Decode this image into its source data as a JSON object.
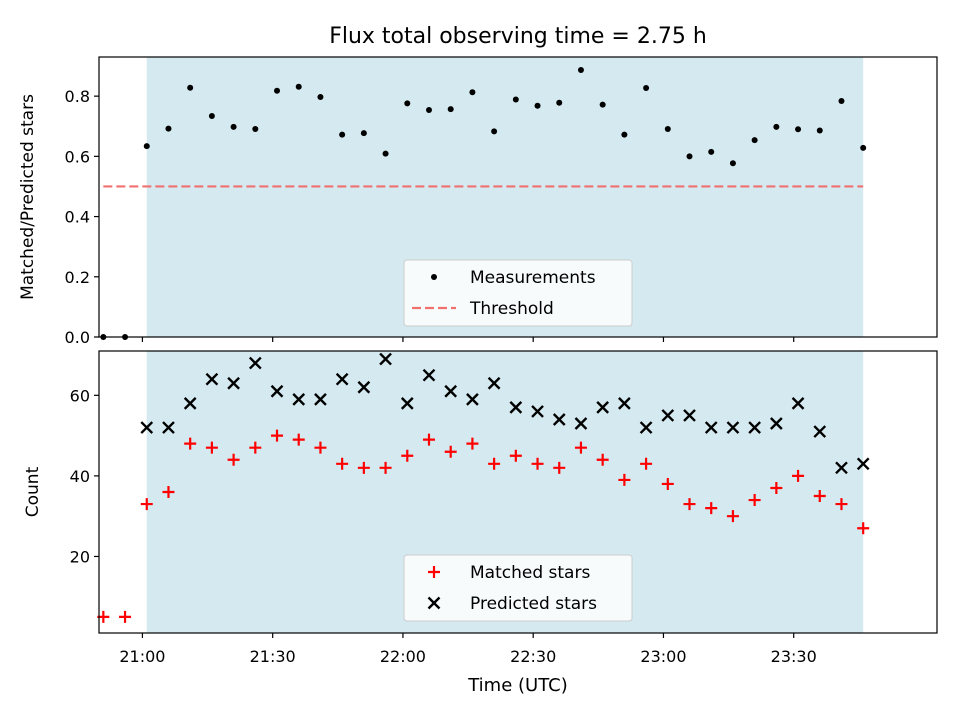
{
  "figure": {
    "title": "Flux total observing time = 2.75 h",
    "xlabel": "Time (UTC)",
    "x_ticks": [
      "21:00",
      "21:30",
      "22:00",
      "22:30",
      "23:00",
      "23:30"
    ],
    "shade_color": "#d4eaf0"
  },
  "chart_data": [
    {
      "type": "scatter",
      "name": "ratio",
      "xlim": [
        "20:50",
        "24:03"
      ],
      "shaded_interval": [
        "21:01",
        "23:46"
      ],
      "ylabel": "Matched/Predicted stars",
      "ylim": [
        0,
        0.93
      ],
      "y_ticks": [
        "0.0",
        "0.2",
        "0.4",
        "0.6",
        "0.8"
      ],
      "y_tick_values": [
        0,
        0.2,
        0.4,
        0.6,
        0.8
      ],
      "x": [
        "20:51",
        "20:56",
        "21:01",
        "21:06",
        "21:11",
        "21:16",
        "21:21",
        "21:26",
        "21:31",
        "21:36",
        "21:41",
        "21:46",
        "21:51",
        "21:56",
        "22:01",
        "22:06",
        "22:11",
        "22:16",
        "22:21",
        "22:26",
        "22:31",
        "22:36",
        "22:41",
        "22:46",
        "22:51",
        "22:56",
        "23:01",
        "23:06",
        "23:11",
        "23:16",
        "23:21",
        "23:26",
        "23:31",
        "23:36",
        "23:41",
        "23:46"
      ],
      "series": [
        {
          "name": "Measurements",
          "color": "#000000",
          "marker": "dot",
          "values": [
            0.0,
            0.0,
            0.634,
            0.692,
            0.828,
            0.734,
            0.698,
            0.691,
            0.818,
            0.831,
            0.797,
            0.672,
            0.677,
            0.609,
            0.776,
            0.754,
            0.757,
            0.813,
            0.683,
            0.789,
            0.768,
            0.778,
            0.887,
            0.772,
            0.672,
            0.827,
            0.691,
            0.6,
            0.615,
            0.577,
            0.654,
            0.698,
            0.69,
            0.686,
            0.784,
            0.628
          ]
        }
      ],
      "threshold": {
        "name": "Threshold",
        "value": 0.5,
        "color": "#f07070",
        "x_range": [
          "20:51",
          "23:46"
        ]
      },
      "legend": {
        "location": "lower center",
        "entries": [
          "Measurements",
          "Threshold"
        ]
      }
    },
    {
      "type": "scatter",
      "name": "counts",
      "xlim": [
        "20:50",
        "24:03"
      ],
      "shaded_interval": [
        "21:01",
        "23:46"
      ],
      "ylabel": "Count",
      "ylim": [
        1,
        71
      ],
      "y_ticks": [
        "20",
        "40",
        "60"
      ],
      "y_tick_values": [
        20,
        40,
        60
      ],
      "x": [
        "20:51",
        "20:56",
        "21:01",
        "21:06",
        "21:11",
        "21:16",
        "21:21",
        "21:26",
        "21:31",
        "21:36",
        "21:41",
        "21:46",
        "21:51",
        "21:56",
        "22:01",
        "22:06",
        "22:11",
        "22:16",
        "22:21",
        "22:26",
        "22:31",
        "22:36",
        "22:41",
        "22:46",
        "22:51",
        "22:56",
        "23:01",
        "23:06",
        "23:11",
        "23:16",
        "23:21",
        "23:26",
        "23:31",
        "23:36",
        "23:41",
        "23:46"
      ],
      "series": [
        {
          "name": "Matched stars",
          "color": "#ff0000",
          "marker": "plus",
          "values": [
            5,
            5,
            33,
            36,
            48,
            47,
            44,
            47,
            50,
            49,
            47,
            43,
            42,
            42,
            45,
            49,
            46,
            48,
            43,
            45,
            43,
            42,
            47,
            44,
            39,
            43,
            38,
            33,
            32,
            30,
            34,
            37,
            40,
            35,
            33,
            27
          ]
        },
        {
          "name": "Predicted stars",
          "color": "#000000",
          "marker": "x",
          "values": [
            null,
            null,
            52,
            52,
            58,
            64,
            63,
            68,
            61,
            59,
            59,
            64,
            62,
            69,
            58,
            65,
            61,
            59,
            63,
            57,
            56,
            54,
            53,
            57,
            58,
            52,
            55,
            55,
            52,
            52,
            52,
            53,
            58,
            51,
            42,
            43
          ]
        }
      ],
      "legend": {
        "location": "lower center",
        "entries": [
          "Matched stars",
          "Predicted stars"
        ]
      }
    }
  ]
}
